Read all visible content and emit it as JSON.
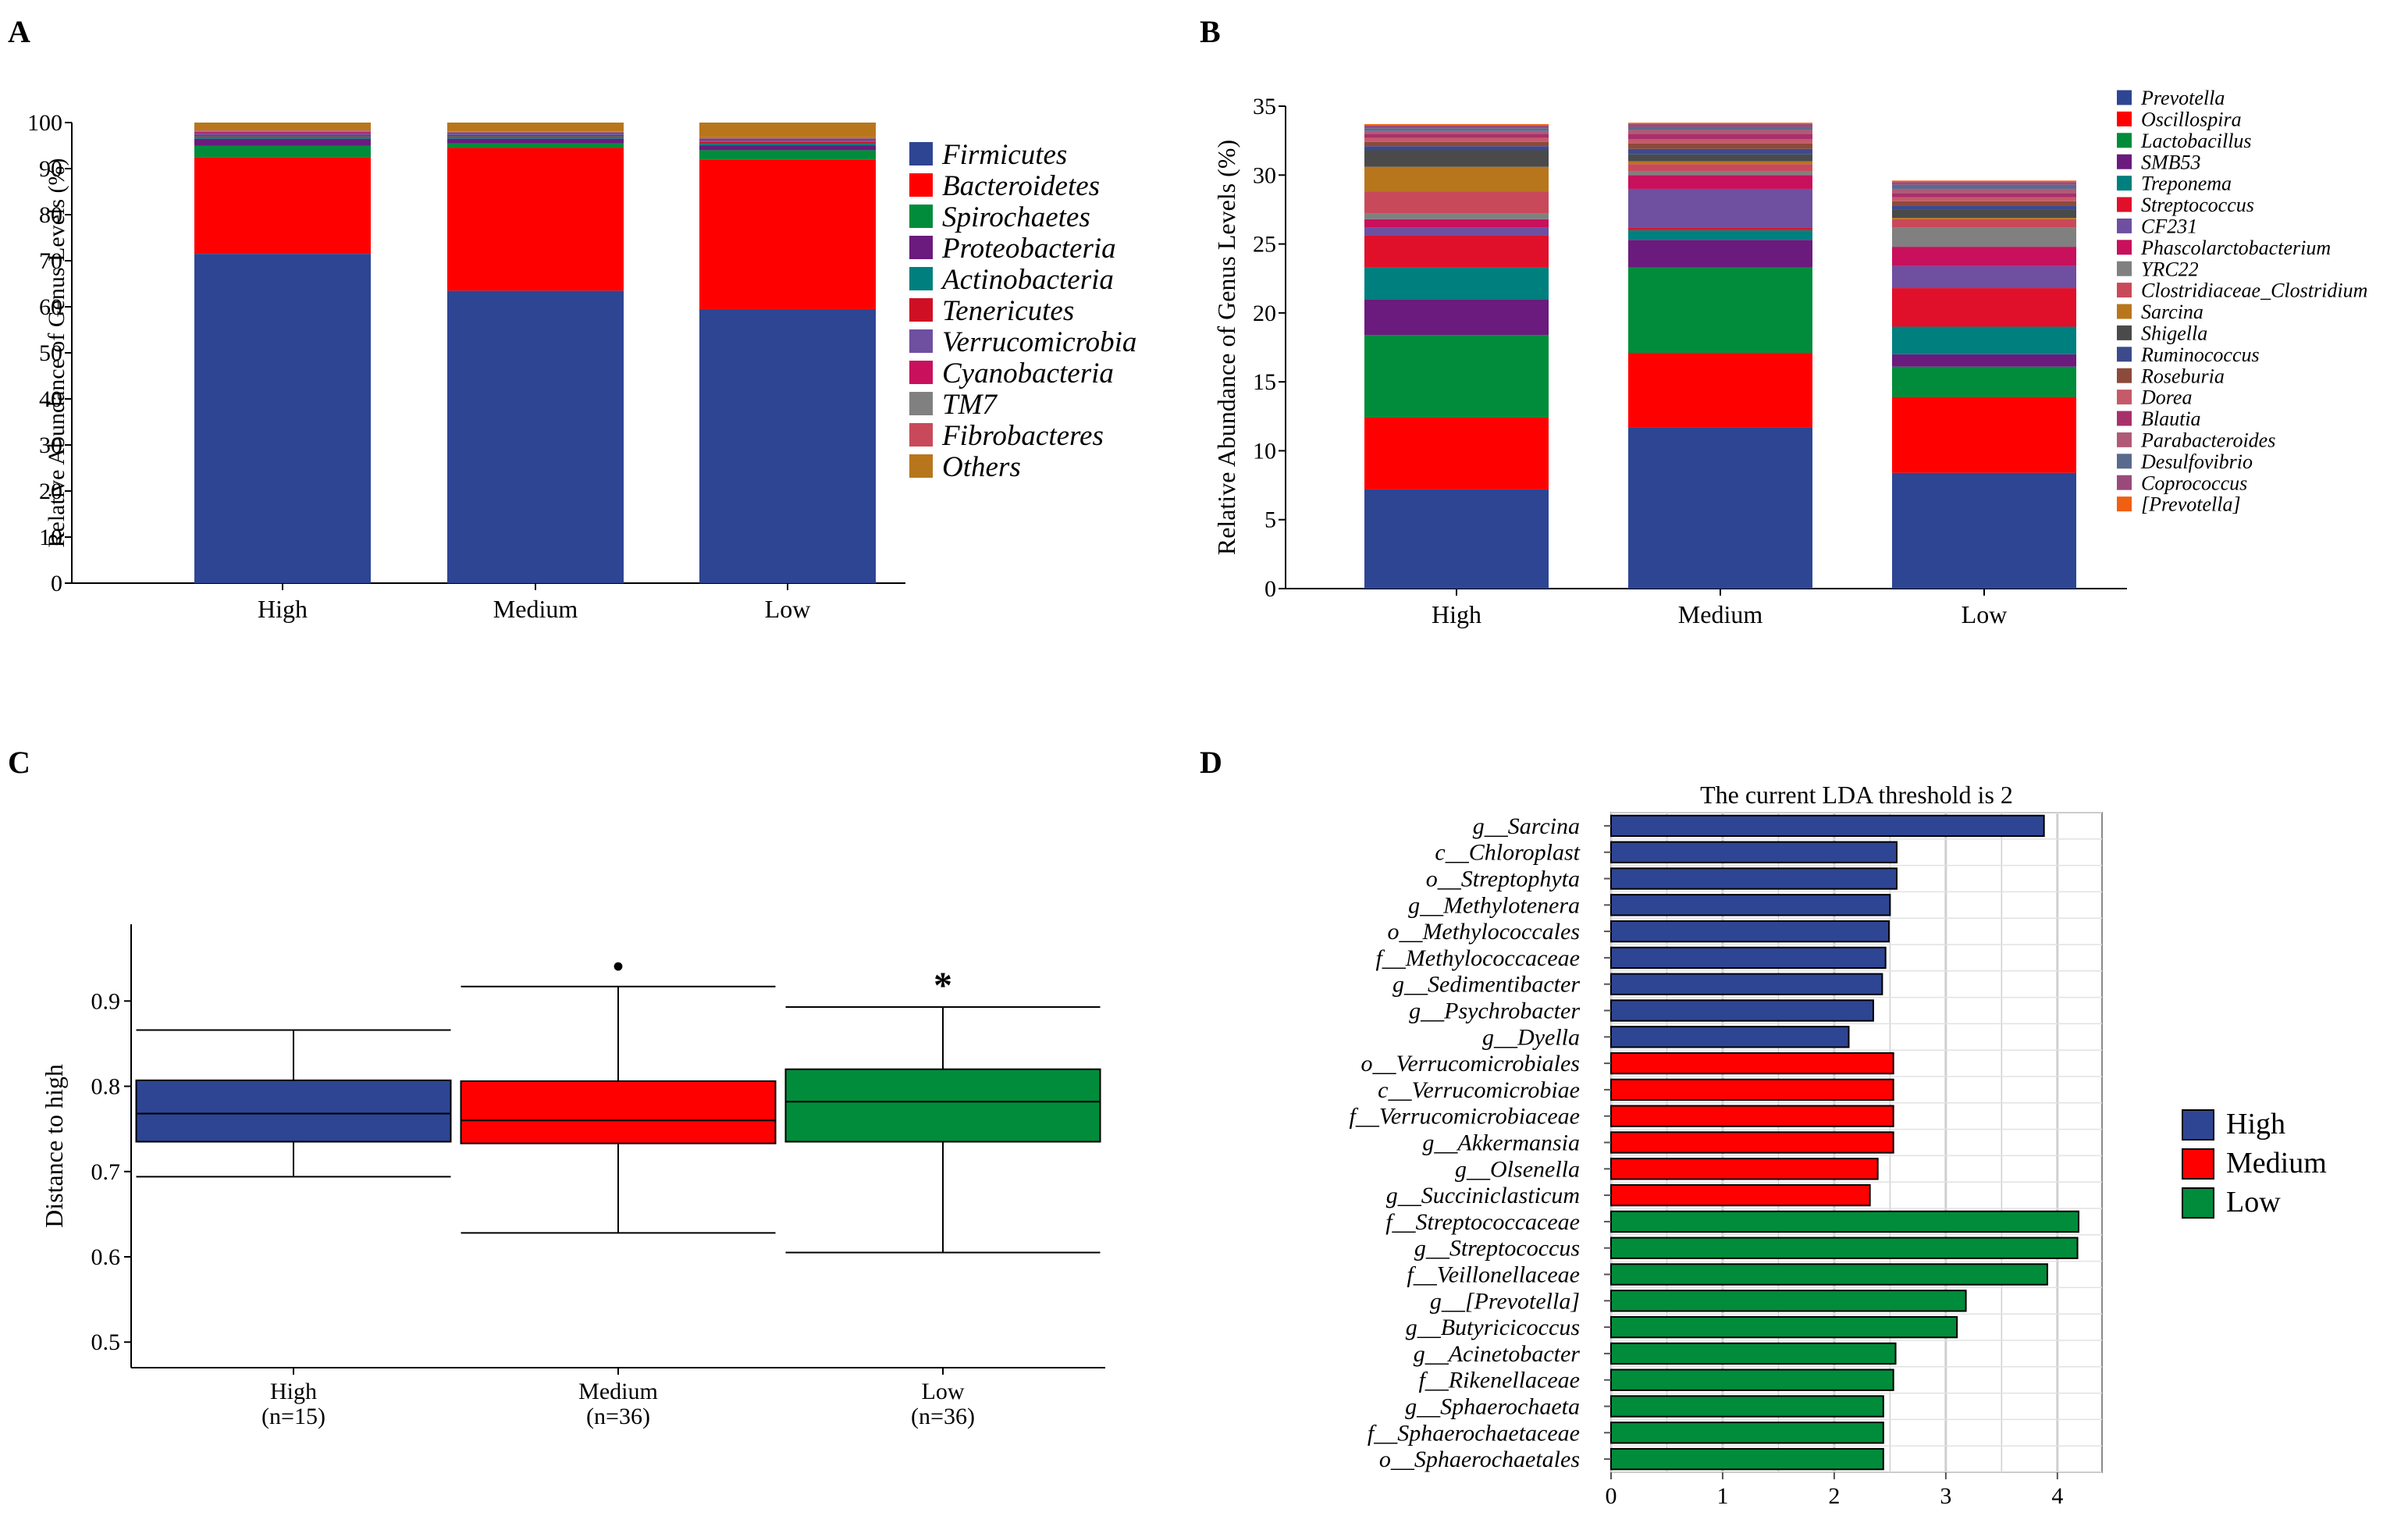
{
  "panel_labels": [
    "A",
    "B",
    "C",
    "D"
  ],
  "chart_data": [
    {
      "panel": "A",
      "type": "bar",
      "stacked": true,
      "title": "",
      "xlabel": "",
      "ylabel": "Relative Abundance of Genus Levels (%)",
      "ylim": [
        0,
        100
      ],
      "yticks": [
        0,
        10,
        20,
        30,
        40,
        50,
        60,
        70,
        80,
        90,
        100
      ],
      "categories": [
        "High",
        "Medium",
        "Low"
      ],
      "legend_position": "right",
      "series": [
        {
          "name": "Firmicutes",
          "color": "#2e4593",
          "values": [
            71.5,
            63.5,
            59.5
          ]
        },
        {
          "name": "Bacteroidetes",
          "color": "#ff0000",
          "values": [
            21.0,
            31.0,
            32.5
          ]
        },
        {
          "name": "Spirochaetes",
          "color": "#008c3a",
          "values": [
            2.5,
            1.0,
            2.0
          ]
        },
        {
          "name": "Proteobacteria",
          "color": "#6a1b7d",
          "values": [
            1.5,
            1.0,
            1.0
          ]
        },
        {
          "name": "Actinobacteria",
          "color": "#007f7f",
          "values": [
            0.5,
            0.5,
            0.5
          ]
        },
        {
          "name": "Tenericutes",
          "color": "#cf1024",
          "values": [
            0.3,
            0.3,
            0.3
          ]
        },
        {
          "name": "Verrucomicrobia",
          "color": "#6f4fa0",
          "values": [
            0.5,
            0.3,
            0.4
          ]
        },
        {
          "name": "Cyanobacteria",
          "color": "#c8105c",
          "values": [
            0.2,
            0.2,
            0.3
          ]
        },
        {
          "name": "TM7",
          "color": "#808080",
          "values": [
            0.2,
            0.2,
            0.2
          ]
        },
        {
          "name": "Fibrobacteres",
          "color": "#c84a5a",
          "values": [
            0.1,
            0.1,
            0.1
          ]
        },
        {
          "name": "Others",
          "color": "#b8761c",
          "values": [
            1.7,
            1.9,
            3.2
          ]
        }
      ]
    },
    {
      "panel": "B",
      "type": "bar",
      "stacked": true,
      "title": "",
      "xlabel": "",
      "ylabel": "Relative Abundance of Genus Levels (%)",
      "ylim": [
        0,
        35
      ],
      "yticks": [
        0,
        5,
        10,
        15,
        20,
        25,
        30,
        35
      ],
      "categories": [
        "High",
        "Medium",
        "Low"
      ],
      "legend_position": "right",
      "series": [
        {
          "name": "Prevotella",
          "color": "#2e4593",
          "values": [
            7.2,
            11.7,
            8.4
          ]
        },
        {
          "name": "Oscillospira",
          "color": "#ff0000",
          "values": [
            5.2,
            5.4,
            5.5
          ]
        },
        {
          "name": "Lactobacillus",
          "color": "#008c3a",
          "values": [
            6.0,
            6.2,
            2.2
          ]
        },
        {
          "name": "SMB53",
          "color": "#6a1b7d",
          "values": [
            2.6,
            2.0,
            0.9
          ]
        },
        {
          "name": "Treponema",
          "color": "#007f7f",
          "values": [
            2.3,
            0.7,
            2.0
          ]
        },
        {
          "name": "Streptococcus",
          "color": "#e0102a",
          "values": [
            2.3,
            0.2,
            2.8
          ]
        },
        {
          "name": "CF231",
          "color": "#6f4fa0",
          "values": [
            0.6,
            2.8,
            1.6
          ]
        },
        {
          "name": "Phascolarctobacterium",
          "color": "#c8105c",
          "values": [
            0.6,
            1.0,
            1.4
          ]
        },
        {
          "name": "YRC22",
          "color": "#808080",
          "values": [
            0.4,
            0.3,
            1.4
          ]
        },
        {
          "name": "Clostridiaceae_Clostridium",
          "color": "#c84a5a",
          "values": [
            1.6,
            0.5,
            0.6
          ]
        },
        {
          "name": "Sarcina",
          "color": "#b8761c",
          "values": [
            1.8,
            0.2,
            0.1
          ]
        },
        {
          "name": "Shigella",
          "color": "#4a4a4a",
          "values": [
            1.2,
            0.5,
            0.6
          ]
        },
        {
          "name": "Ruminococcus",
          "color": "#3c4a8c",
          "values": [
            0.3,
            0.4,
            0.3
          ]
        },
        {
          "name": "Roseburia",
          "color": "#8c4a3a",
          "values": [
            0.3,
            0.4,
            0.3
          ]
        },
        {
          "name": "Dorea",
          "color": "#c45a6a",
          "values": [
            0.3,
            0.3,
            0.3
          ]
        },
        {
          "name": "Blautia",
          "color": "#a8306a",
          "values": [
            0.3,
            0.4,
            0.3
          ]
        },
        {
          "name": "Parabacteroides",
          "color": "#b05a78",
          "values": [
            0.2,
            0.3,
            0.3
          ]
        },
        {
          "name": "Desulfovibrio",
          "color": "#5a6a8c",
          "values": [
            0.2,
            0.2,
            0.3
          ]
        },
        {
          "name": "Coprococcus",
          "color": "#9a4a7a",
          "values": [
            0.2,
            0.2,
            0.2
          ]
        },
        {
          "name": "[Prevotella]",
          "color": "#f06010",
          "values": [
            0.1,
            0.1,
            0.1
          ]
        }
      ]
    },
    {
      "panel": "C",
      "type": "box",
      "title": "",
      "xlabel": "",
      "ylabel": "Distance to high",
      "ylim": [
        0.47,
        0.99
      ],
      "yticks": [
        0.5,
        0.6,
        0.7,
        0.8,
        0.9
      ],
      "categories": [
        "High",
        "Medium",
        "Low"
      ],
      "category_sublabels": [
        "(n=15)",
        "(n=36)",
        "(n=36)"
      ],
      "boxes": [
        {
          "name": "High",
          "color": "#2e4593",
          "min": 0.694,
          "q1": 0.735,
          "median": 0.768,
          "q3": 0.807,
          "max": 0.866,
          "annotation": ""
        },
        {
          "name": "Medium",
          "color": "#ff0000",
          "min": 0.628,
          "q1": 0.733,
          "median": 0.76,
          "q3": 0.806,
          "max": 0.917,
          "annotation": "•"
        },
        {
          "name": "Low",
          "color": "#008c3a",
          "min": 0.605,
          "q1": 0.735,
          "median": 0.782,
          "q3": 0.82,
          "max": 0.893,
          "annotation": "*"
        }
      ]
    },
    {
      "panel": "D",
      "type": "bar",
      "orientation": "horizontal",
      "title": "The current LDA threshold is 2",
      "xlabel": "",
      "ylabel": "",
      "xlim": [
        0,
        4.4
      ],
      "xticks": [
        0,
        1,
        2,
        3,
        4
      ],
      "legend_position": "right",
      "legend": [
        {
          "name": "High",
          "color": "#2e4593"
        },
        {
          "name": "Medium",
          "color": "#ff0000"
        },
        {
          "name": "Low",
          "color": "#008c3a"
        }
      ],
      "bars": [
        {
          "label": "g__Sarcina",
          "group": "High",
          "value": 3.88
        },
        {
          "label": "c__Chloroplast",
          "group": "High",
          "value": 2.56
        },
        {
          "label": "o__Streptophyta",
          "group": "High",
          "value": 2.56
        },
        {
          "label": "g__Methylotenera",
          "group": "High",
          "value": 2.5
        },
        {
          "label": "o__Methylococcales",
          "group": "High",
          "value": 2.49
        },
        {
          "label": "f__Methylococcaceae",
          "group": "High",
          "value": 2.46
        },
        {
          "label": "g__Sedimentibacter",
          "group": "High",
          "value": 2.43
        },
        {
          "label": "g__Psychrobacter",
          "group": "High",
          "value": 2.35
        },
        {
          "label": "g__Dyella",
          "group": "High",
          "value": 2.13
        },
        {
          "label": "o__Verrucomicrobiales",
          "group": "Medium",
          "value": 2.53
        },
        {
          "label": "c__Verrucomicrobiae",
          "group": "Medium",
          "value": 2.53
        },
        {
          "label": "f__Verrucomicrobiaceae",
          "group": "Medium",
          "value": 2.53
        },
        {
          "label": "g__Akkermansia",
          "group": "Medium",
          "value": 2.53
        },
        {
          "label": "g__Olsenella",
          "group": "Medium",
          "value": 2.39
        },
        {
          "label": "g__Succiniclasticum",
          "group": "Medium",
          "value": 2.32
        },
        {
          "label": "f__Streptococcaceae",
          "group": "Low",
          "value": 4.19
        },
        {
          "label": "g__Streptococcus",
          "group": "Low",
          "value": 4.18
        },
        {
          "label": "f__Veillonellaceae",
          "group": "Low",
          "value": 3.91
        },
        {
          "label": "g__[Prevotella]",
          "group": "Low",
          "value": 3.18
        },
        {
          "label": "g__Butyricicoccus",
          "group": "Low",
          "value": 3.1
        },
        {
          "label": "g__Acinetobacter",
          "group": "Low",
          "value": 2.55
        },
        {
          "label": "f__Rikenellaceae",
          "group": "Low",
          "value": 2.53
        },
        {
          "label": "g__Sphaerochaeta",
          "group": "Low",
          "value": 2.44
        },
        {
          "label": "f__Sphaerochaetaceae",
          "group": "Low",
          "value": 2.44
        },
        {
          "label": "o__Sphaerochaetales",
          "group": "Low",
          "value": 2.44
        }
      ]
    }
  ]
}
